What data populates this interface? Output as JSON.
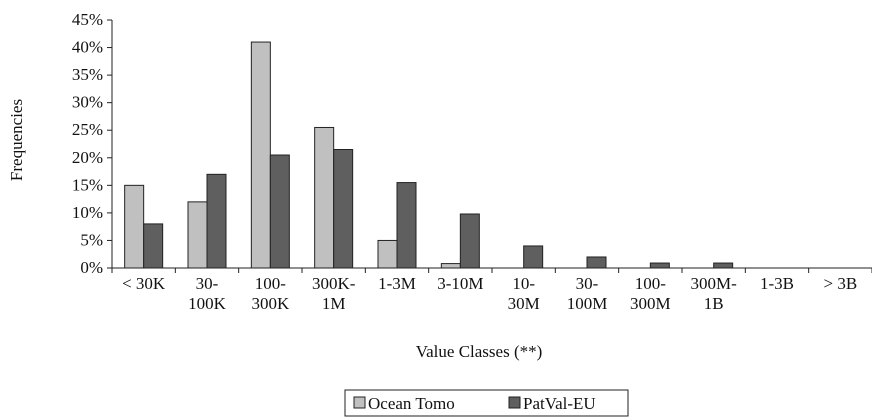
{
  "chart_data": {
    "type": "bar",
    "xlabel": "Value Classes (**)",
    "ylabel": "Frequencies",
    "ylim": [
      0,
      45
    ],
    "y_ticks": [
      0,
      5,
      10,
      15,
      20,
      25,
      30,
      35,
      40,
      45
    ],
    "y_tick_suffix": "%",
    "grid": false,
    "legend_position": "bottom-center",
    "categories": [
      [
        "< 30K"
      ],
      [
        "30-",
        "100K"
      ],
      [
        "100-",
        "300K"
      ],
      [
        "300K-",
        "1M"
      ],
      [
        "1-3M"
      ],
      [
        "3-10M"
      ],
      [
        "10-",
        "30M"
      ],
      [
        "30-",
        "100M"
      ],
      [
        "100-",
        "300M"
      ],
      [
        "300M-",
        "1B"
      ],
      [
        "1-3B"
      ],
      [
        "> 3B"
      ]
    ],
    "series": [
      {
        "name": "Ocean Tomo",
        "color": "#c0c0c0",
        "values": [
          15,
          12,
          41,
          25.5,
          5,
          0.8,
          0,
          0,
          0,
          0,
          0,
          0
        ]
      },
      {
        "name": "PatVal-EU",
        "color": "#5f5f5f",
        "values": [
          8,
          17,
          20.5,
          21.5,
          15.5,
          9.8,
          4,
          2,
          0.9,
          0.9,
          0,
          0
        ]
      }
    ]
  }
}
